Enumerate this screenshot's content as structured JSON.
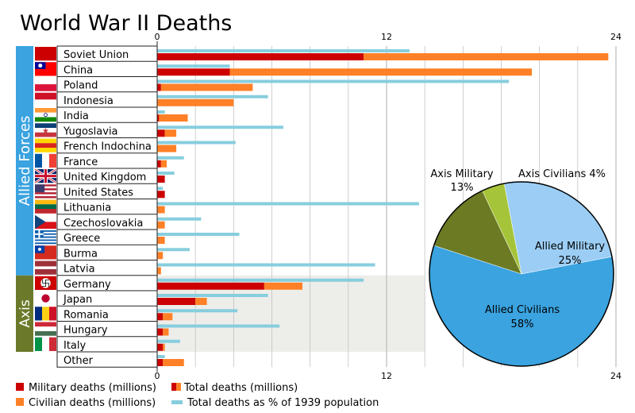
{
  "chart_data": [
    {
      "type": "bar",
      "title": "World War II Deaths",
      "axis": {
        "min": 0,
        "max": 24,
        "ticks": [
          0,
          12,
          24
        ],
        "grid": true,
        "tick_positions": "top and bottom"
      },
      "groups": [
        {
          "label": "Allied Forces",
          "color": "#3aa3e0"
        },
        {
          "label": "Axis",
          "color": "#6b7a2a"
        }
      ],
      "flag_icons": [
        "soviet-flag-icon",
        "roc-flag-icon",
        "poland-flag-icon",
        "indonesia-flag-icon",
        "india-flag-icon",
        "yugoslavia-flag-icon",
        "french-indochina-flag-icon",
        "france-flag-icon",
        "uk-flag-icon",
        "us-flag-icon",
        "lithuania-flag-icon",
        "czechoslovakia-flag-icon",
        "greece-flag-icon",
        "burma-flag-icon",
        "latvia-flag-icon",
        "nazi-germany-flag-icon",
        "japan-flag-icon",
        "romania-flag-icon",
        "hungary-flag-icon",
        "italy-flag-icon"
      ],
      "categories": [
        "Soviet Union",
        "China",
        "Poland",
        "Indonesia",
        "India",
        "Yugoslavia",
        "French Indochina",
        "France",
        "United Kingdom",
        "United States",
        "Lithuania",
        "Czechoslovakia",
        "Greece",
        "Burma",
        "Latvia",
        "Germany",
        "Japan",
        "Romania",
        "Hungary",
        "Italy",
        "Other"
      ],
      "category_group": [
        "Allied Forces",
        "Allied Forces",
        "Allied Forces",
        "Allied Forces",
        "Allied Forces",
        "Allied Forces",
        "Allied Forces",
        "Allied Forces",
        "Allied Forces",
        "Allied Forces",
        "Allied Forces",
        "Allied Forces",
        "Allied Forces",
        "Allied Forces",
        "Allied Forces",
        "Axis",
        "Axis",
        "Axis",
        "Axis",
        "Axis",
        ""
      ],
      "series": [
        {
          "name": "Military deaths (millions)",
          "color": "#cc0000",
          "values": [
            10.8,
            3.8,
            0.2,
            0,
            0.1,
            0.4,
            0,
            0.2,
            0.4,
            0.4,
            0,
            0,
            0,
            0,
            0,
            5.6,
            2.0,
            0.3,
            0.3,
            0.3,
            0.3
          ]
        },
        {
          "name": "Civilian deaths (millions)",
          "color": "#ff8026",
          "values": [
            12.8,
            15.8,
            4.8,
            4.0,
            1.5,
            0.6,
            1.0,
            0.3,
            0,
            0,
            0.4,
            0.4,
            0.4,
            0.3,
            0.2,
            2.0,
            0.6,
            0.5,
            0.3,
            0.1,
            1.1
          ]
        },
        {
          "name": "Total deaths as % of 1939 population",
          "color": "#87cede",
          "values": [
            13.2,
            3.8,
            18.4,
            5.8,
            0.4,
            6.6,
            4.1,
            1.4,
            0.9,
            0.3,
            13.7,
            2.3,
            4.3,
            1.7,
            11.4,
            10.8,
            5.8,
            4.2,
            6.4,
            1.2,
            0.4
          ]
        }
      ],
      "legend": {
        "placement": "bottom",
        "items": [
          {
            "label": "Military deaths (millions)",
            "swatch": "military"
          },
          {
            "label": "Total deaths (millions)",
            "swatch": "total"
          },
          {
            "label": "Civilian deaths (millions)",
            "swatch": "civilian"
          },
          {
            "label": "Total deaths as % of 1939 population",
            "swatch": "percent"
          }
        ]
      }
    },
    {
      "type": "pie",
      "slices": [
        {
          "label": "Axis Military",
          "percent_label": "13%",
          "value": 13,
          "color": "#6b7a23"
        },
        {
          "label": "Axis Civilians",
          "percent_label": "4%",
          "value": 4,
          "color": "#a6c43a"
        },
        {
          "label": "Allied Military",
          "percent_label": "25%",
          "value": 25,
          "color": "#9ccef5"
        },
        {
          "label": "Allied Civilians",
          "percent_label": "58%",
          "value": 58,
          "color": "#3aa3e0"
        }
      ]
    }
  ]
}
